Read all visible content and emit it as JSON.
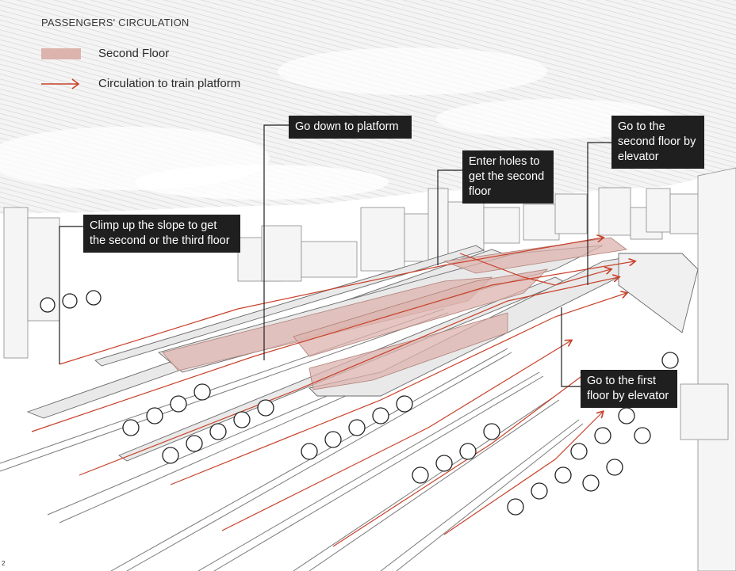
{
  "legend": {
    "title": "PASSENGERS' CIRCULATION",
    "items": [
      {
        "label": "Second Floor",
        "color": "#dcb3ad",
        "kind": "swatch"
      },
      {
        "label": "Circulation to train platform",
        "color": "#c8412a",
        "kind": "arrow"
      }
    ]
  },
  "callouts": {
    "down_to_platform": "Go down to platform",
    "enter_holes": "Enter holes to get the second floor",
    "second_floor_elevator": "Go to the second floor by elevator",
    "climb_slope": "Climp up the slope to get the second or the third floor",
    "first_floor_elevator": "Go to the first floor by elevator"
  },
  "page_number": "2",
  "colors": {
    "circulation": "#c8412a",
    "second_floor": "#dcb3ad",
    "callout_bg": "#1f1f1f",
    "building": "#f4f4f4",
    "line": "#6a6a6a"
  }
}
